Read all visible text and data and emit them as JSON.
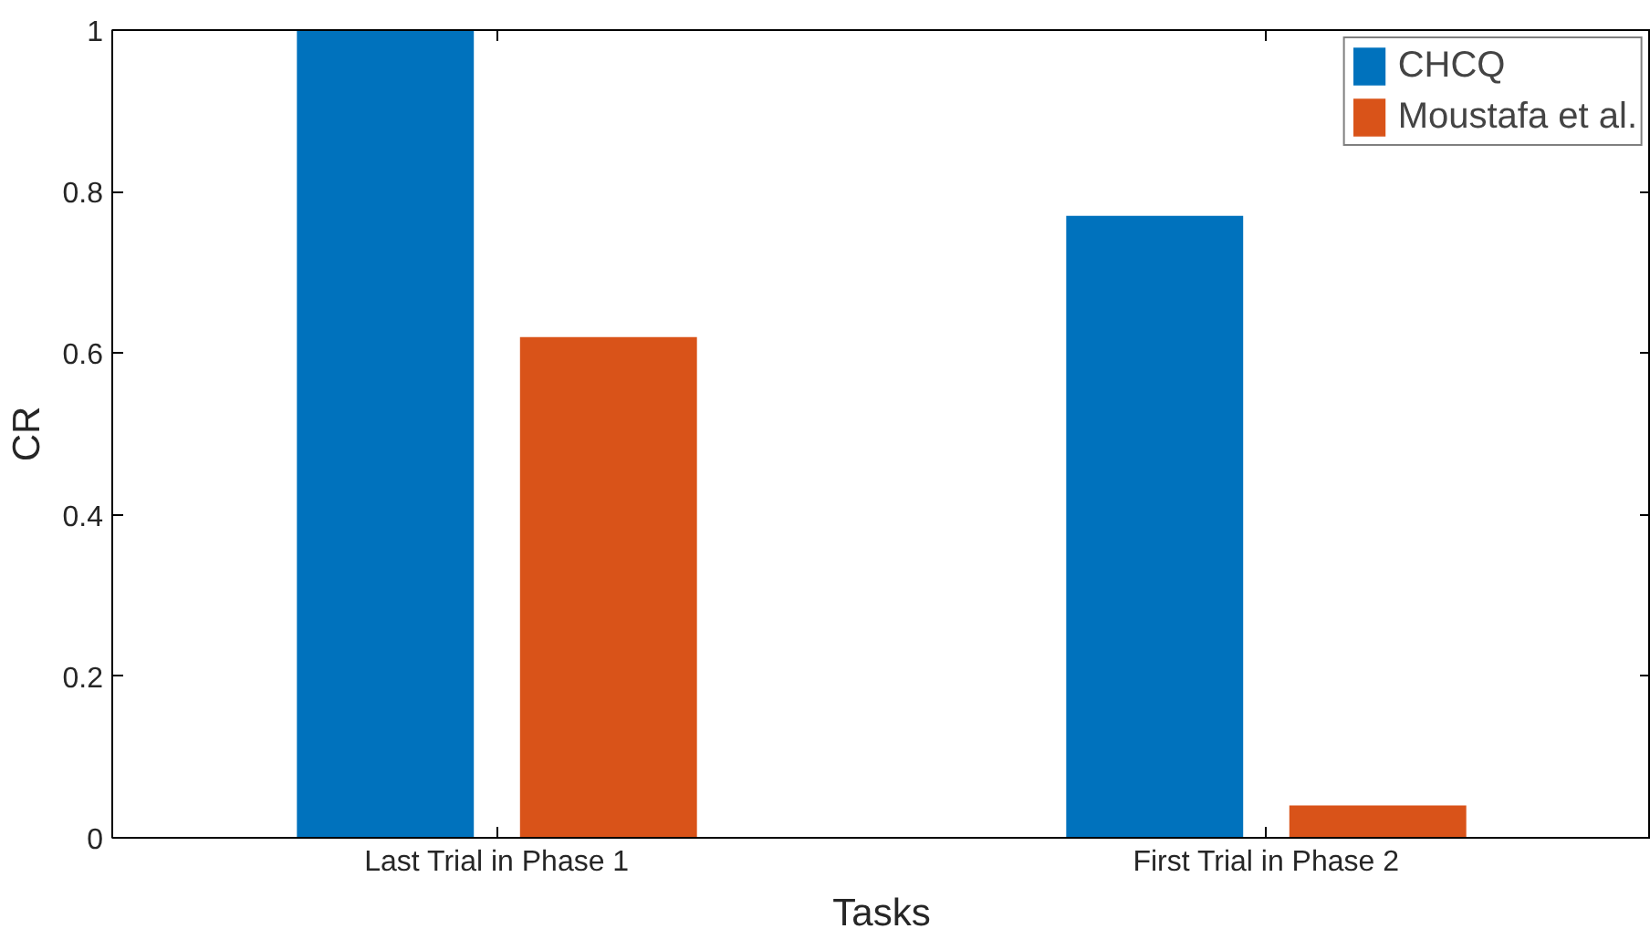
{
  "chart_data": {
    "type": "bar",
    "xlabel": "Tasks",
    "ylabel": "CR",
    "categories": [
      "Last Trial in Phase 1",
      "First Trial in Phase 2"
    ],
    "series": [
      {
        "name": "CHCQ",
        "color": "#0072bd",
        "values": [
          1.0,
          0.77
        ]
      },
      {
        "name": "Moustafa et al.",
        "color": "#d95319",
        "values": [
          0.62,
          0.04
        ]
      }
    ],
    "ylim": [
      0,
      1
    ],
    "yticks": [
      0,
      0.2,
      0.4,
      0.6,
      0.8,
      1
    ],
    "grid": false,
    "legend": "top right"
  }
}
